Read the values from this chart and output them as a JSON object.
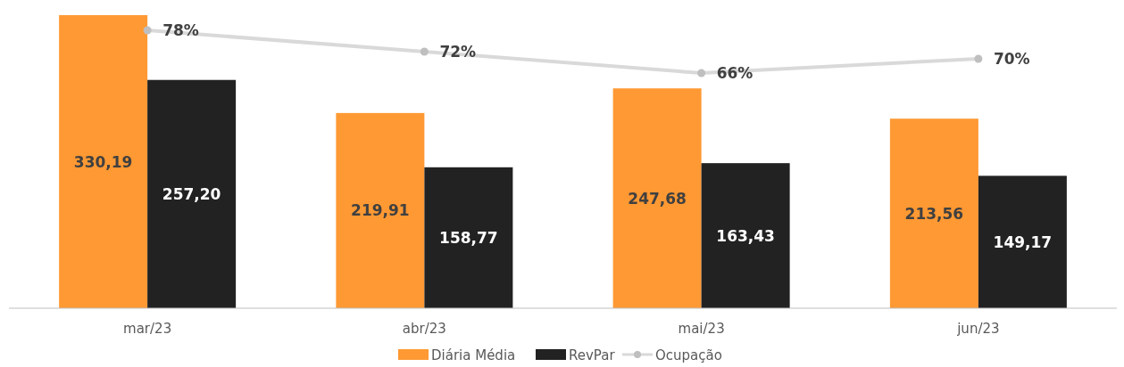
{
  "chart_data": {
    "type": "bar",
    "categories": [
      "mar/23",
      "abr/23",
      "mai/23",
      "jun/23"
    ],
    "series": [
      {
        "name": "Diária Média",
        "color": "#ff9933",
        "values": [
          330.19,
          219.91,
          247.68,
          213.56
        ],
        "value_labels": [
          "330,19",
          "219,91",
          "247,68",
          "213,56"
        ]
      },
      {
        "name": "RevPar",
        "color": "#222222",
        "values": [
          257.2,
          158.77,
          163.43,
          149.17
        ],
        "value_labels": [
          "257,20",
          "158,77",
          "163,43",
          "149,17"
        ]
      },
      {
        "name": "Ocupação",
        "type": "line",
        "axis": "y2",
        "color": "#d9d9d9",
        "marker": "circle",
        "values": [
          78,
          72,
          66,
          70
        ],
        "value_labels": [
          "78%",
          "72%",
          "66%",
          "70%"
        ]
      }
    ],
    "ylim": [
      0,
      330.19
    ],
    "y2lim": [
      0,
      82.25
    ],
    "tick_labels": "x",
    "legend": "bottom"
  }
}
